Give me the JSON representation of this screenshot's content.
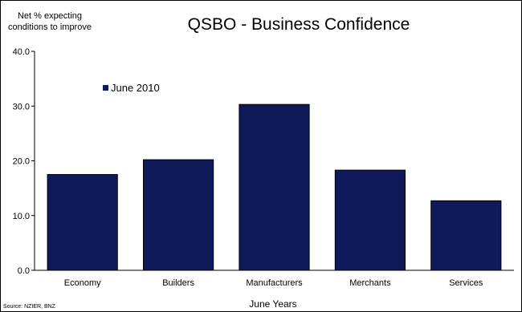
{
  "chart_data": {
    "type": "bar",
    "title": "QSBO - Business Confidence",
    "ylabel": "Net % expecting conditions to improve",
    "ylabel_lines": [
      "Net % expecting",
      "conditions to improve"
    ],
    "xlabel": "June Years",
    "categories": [
      "Economy",
      "Builders",
      "Manufacturers",
      "Merchants",
      "Services"
    ],
    "series": [
      {
        "name": "June 2010",
        "values": [
          17.5,
          20.2,
          30.3,
          18.3,
          12.7
        ]
      }
    ],
    "ylim": [
      0,
      40
    ],
    "yticks": [
      "0.0",
      "10.0",
      "20.0",
      "30.0",
      "40.0"
    ],
    "grid": false,
    "legend_position": "top-left",
    "bar_color": "#0f1a5a",
    "source": "Source: NZIER, BNZ"
  }
}
